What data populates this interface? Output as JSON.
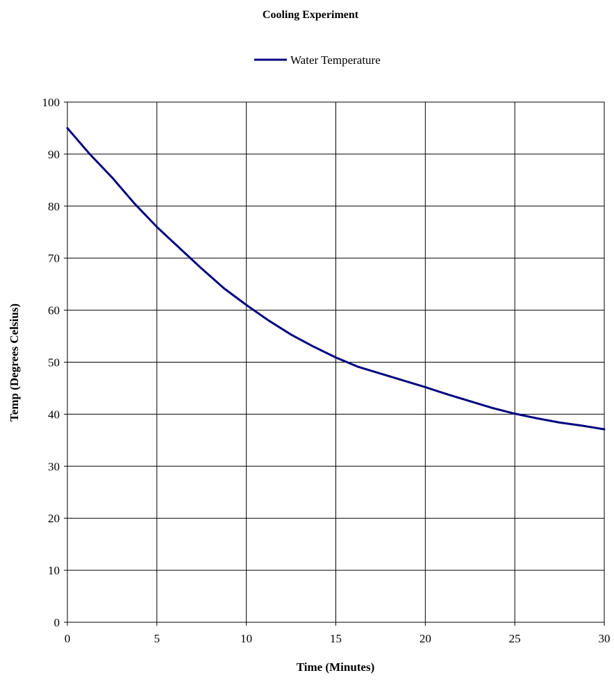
{
  "chart_data": {
    "type": "line",
    "title": "Cooling Experiment",
    "xlabel": "Time (Minutes)",
    "ylabel": "Temp (Degrees Celsius)",
    "xlim": [
      0,
      30
    ],
    "ylim": [
      0,
      100
    ],
    "x_ticks": [
      "0",
      "5",
      "10",
      "15",
      "20",
      "25",
      "30"
    ],
    "y_ticks": [
      "0",
      "10",
      "20",
      "30",
      "40",
      "50",
      "60",
      "70",
      "80",
      "90",
      "100"
    ],
    "grid": true,
    "legend_position": "top-center",
    "series": [
      {
        "name": "Water Temperature",
        "color": "#000080",
        "x": [
          0,
          1.25,
          2.5,
          3.75,
          5,
          6.25,
          7.5,
          8.75,
          10,
          11.25,
          12.5,
          13.75,
          15,
          16.25,
          17.5,
          18.75,
          20,
          21.25,
          22.5,
          23.75,
          25,
          26.25,
          27.5,
          28.75,
          30
        ],
        "y": [
          95,
          90,
          85.5,
          80.5,
          76,
          72,
          68,
          64.2,
          61,
          58,
          55.3,
          53,
          50.9,
          49.1,
          47.8,
          46.5,
          45.2,
          43.8,
          42.5,
          41.2,
          40.1,
          39.2,
          38.4,
          37.8,
          37.1
        ]
      }
    ]
  }
}
